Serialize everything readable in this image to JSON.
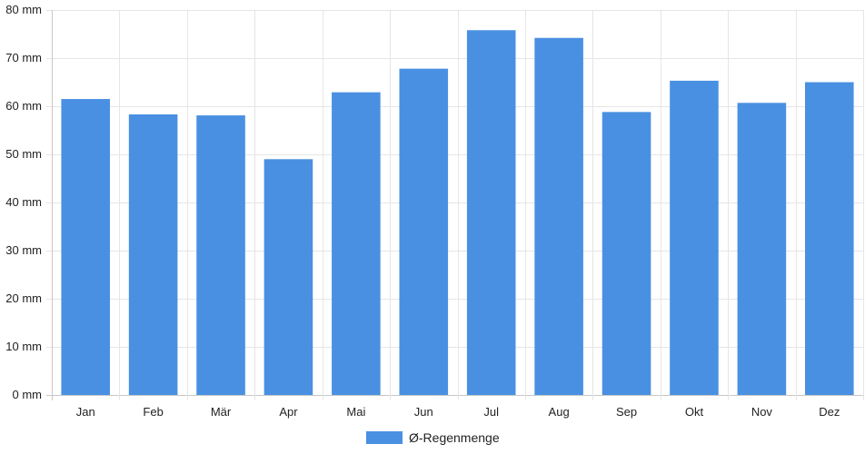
{
  "chart_data": {
    "type": "bar",
    "categories": [
      "Jan",
      "Feb",
      "Mär",
      "Apr",
      "Mai",
      "Jun",
      "Jul",
      "Aug",
      "Sep",
      "Okt",
      "Nov",
      "Dez"
    ],
    "series": [
      {
        "name": "Ø-Regenmenge",
        "values": [
          61.5,
          58.3,
          58.1,
          49.0,
          62.9,
          67.8,
          75.8,
          74.2,
          58.8,
          65.3,
          60.7,
          65.0
        ]
      }
    ],
    "title": "",
    "xlabel": "",
    "ylabel": "",
    "ylim": [
      0,
      80
    ],
    "yticks": [
      0,
      10,
      20,
      30,
      40,
      50,
      60,
      70,
      80
    ],
    "ytick_suffix": " mm",
    "grid": true,
    "legend_position": "bottom",
    "colors": {
      "bar": "#4a90e2",
      "grid": "#e6e6e6",
      "axis": "#c8c8c8",
      "text": "#222222"
    }
  }
}
